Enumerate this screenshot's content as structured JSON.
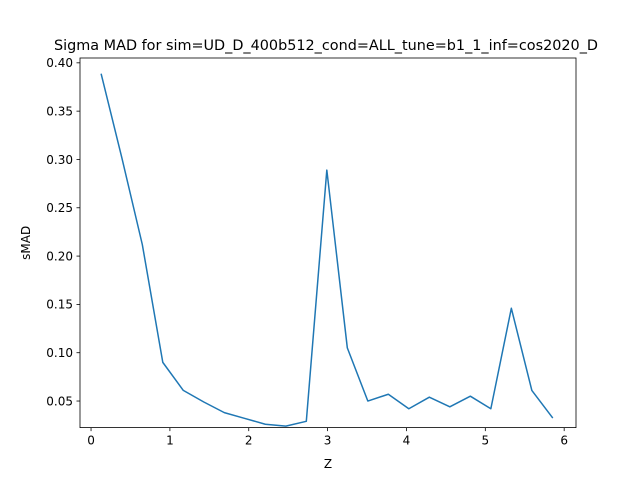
{
  "chart_data": {
    "type": "line",
    "title": "Sigma MAD for sim=UD_D_400b512_cond=ALL_tune=b1_1_inf=cos2020_D",
    "xlabel": "Z",
    "ylabel": "sMAD",
    "xlim": [
      -0.14,
      6.15
    ],
    "ylim": [
      0.0225,
      0.405
    ],
    "xticks": [
      0,
      1,
      2,
      3,
      4,
      5,
      6
    ],
    "xtick_labels": [
      "0",
      "1",
      "2",
      "3",
      "4",
      "5",
      "6"
    ],
    "yticks": [
      0.05,
      0.1,
      0.15,
      0.2,
      0.25,
      0.3,
      0.35,
      0.4
    ],
    "ytick_labels": [
      "0.05",
      "0.10",
      "0.15",
      "0.20",
      "0.25",
      "0.30",
      "0.35",
      "0.40"
    ],
    "grid": false,
    "series": [
      {
        "color": "#1f77b4",
        "x": [
          0.13,
          0.39,
          0.65,
          0.91,
          1.17,
          1.43,
          1.69,
          1.95,
          2.21,
          2.47,
          2.73,
          2.99,
          3.25,
          3.51,
          3.77,
          4.03,
          4.29,
          4.55,
          4.81,
          5.07,
          5.33,
          5.59,
          5.85
        ],
        "y": [
          0.388,
          0.302,
          0.212,
          0.09,
          0.061,
          0.049,
          0.038,
          0.032,
          0.026,
          0.024,
          0.029,
          0.289,
          0.105,
          0.05,
          0.057,
          0.042,
          0.054,
          0.044,
          0.055,
          0.042,
          0.146,
          0.061,
          0.033
        ]
      }
    ]
  }
}
